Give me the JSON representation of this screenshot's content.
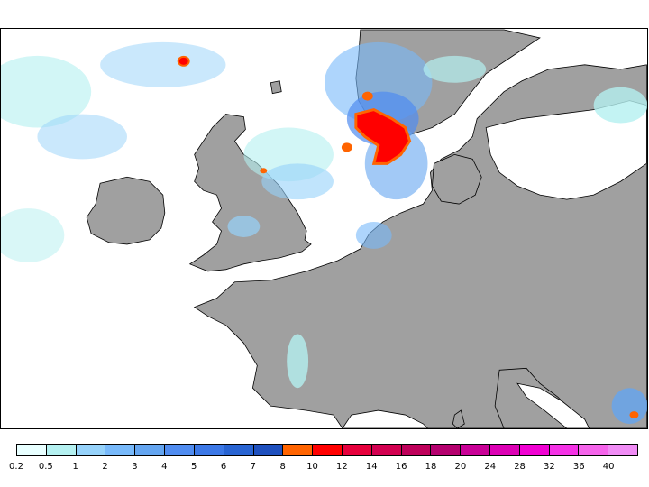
{
  "legend": {
    "colors": [
      "#e8ffff",
      "#b4f0f0",
      "#96d2fa",
      "#78b9fa",
      "#64a5f0",
      "#508cf0",
      "#3c78e6",
      "#2864d2",
      "#1e50be",
      "#ff6400",
      "#ff0000",
      "#e6003c",
      "#d20050",
      "#be005a",
      "#b4006e",
      "#c80096",
      "#dc00b4",
      "#f000d2",
      "#f532e6",
      "#f564eb",
      "#f08cf5"
    ],
    "labels": [
      "0.2",
      "0.5",
      "1",
      "2",
      "3",
      "4",
      "5",
      "6",
      "7",
      "8",
      "10",
      "12",
      "14",
      "16",
      "18",
      "20",
      "24",
      "28",
      "32",
      "36",
      "40"
    ]
  },
  "map": {
    "land_color": "#a0a0a0",
    "sea_color": "#ffffff",
    "outline_color": "#000000"
  }
}
